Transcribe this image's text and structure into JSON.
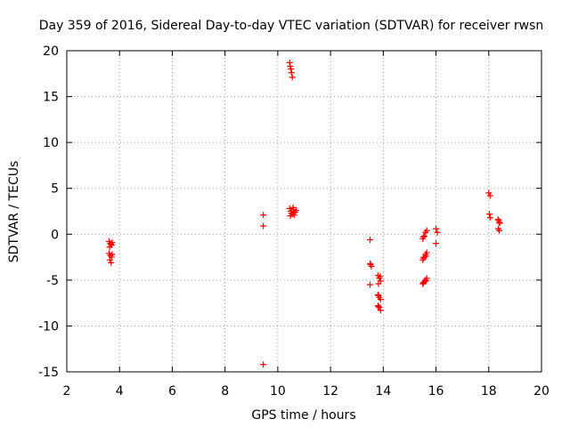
{
  "chart_data": {
    "type": "scatter",
    "title": "Day 359 of 2016, Sidereal Day-to-day VTEC variation (SDTVAR) for receiver rwsn",
    "xlabel": "GPS time / hours",
    "ylabel": "SDTVAR / TECUs",
    "xlim": [
      2,
      20
    ],
    "ylim": [
      -15,
      20
    ],
    "x_ticks": [
      "2",
      "4",
      "6",
      "8",
      "10",
      "12",
      "14",
      "16",
      "18",
      "20"
    ],
    "y_ticks": [
      "-15",
      "-10",
      "-5",
      "0",
      "5",
      "10",
      "15",
      "20"
    ],
    "grid": true,
    "marker": "+",
    "series_color": "#ff0000",
    "points": [
      [
        3.6,
        -0.8
      ],
      [
        3.65,
        -1.0
      ],
      [
        3.7,
        -1.2
      ],
      [
        3.62,
        -1.4
      ],
      [
        3.68,
        -1.1
      ],
      [
        3.72,
        -0.9
      ],
      [
        3.6,
        -2.1
      ],
      [
        3.65,
        -2.3
      ],
      [
        3.7,
        -2.5
      ],
      [
        3.63,
        -2.8
      ],
      [
        3.68,
        -3.1
      ],
      [
        3.72,
        -2.2
      ],
      [
        9.45,
        2.1
      ],
      [
        9.45,
        0.9
      ],
      [
        9.45,
        -14.2
      ],
      [
        10.45,
        18.7
      ],
      [
        10.47,
        18.3
      ],
      [
        10.5,
        18.0
      ],
      [
        10.52,
        17.6
      ],
      [
        10.55,
        17.1
      ],
      [
        10.45,
        2.8
      ],
      [
        10.5,
        2.5
      ],
      [
        10.55,
        2.2
      ],
      [
        10.6,
        2.7
      ],
      [
        10.65,
        2.4
      ],
      [
        10.7,
        2.6
      ],
      [
        10.48,
        2.0
      ],
      [
        10.58,
        2.9
      ],
      [
        10.62,
        2.1
      ],
      [
        10.52,
        2.3
      ],
      [
        13.5,
        -0.6
      ],
      [
        13.5,
        -3.2
      ],
      [
        13.55,
        -3.5
      ],
      [
        13.52,
        -3.3
      ],
      [
        13.5,
        -5.5
      ],
      [
        13.8,
        -4.5
      ],
      [
        13.85,
        -4.8
      ],
      [
        13.9,
        -5.1
      ],
      [
        13.82,
        -5.4
      ],
      [
        13.88,
        -4.6
      ],
      [
        13.8,
        -6.6
      ],
      [
        13.85,
        -6.9
      ],
      [
        13.9,
        -7.1
      ],
      [
        13.82,
        -6.7
      ],
      [
        13.8,
        -7.8
      ],
      [
        13.85,
        -8.0
      ],
      [
        13.9,
        -8.3
      ],
      [
        13.82,
        -7.9
      ],
      [
        15.5,
        -0.5
      ],
      [
        15.55,
        -0.2
      ],
      [
        15.6,
        0.2
      ],
      [
        15.65,
        0.4
      ],
      [
        15.52,
        -0.3
      ],
      [
        15.5,
        -2.8
      ],
      [
        15.55,
        -2.5
      ],
      [
        15.6,
        -2.2
      ],
      [
        15.65,
        -2.0
      ],
      [
        15.52,
        -2.6
      ],
      [
        15.62,
        -2.4
      ],
      [
        15.5,
        -5.4
      ],
      [
        15.55,
        -5.2
      ],
      [
        15.6,
        -5.0
      ],
      [
        15.65,
        -4.8
      ],
      [
        15.52,
        -5.3
      ],
      [
        15.62,
        -5.1
      ],
      [
        16.0,
        0.6
      ],
      [
        16.05,
        0.2
      ],
      [
        16.0,
        -1.0
      ],
      [
        18.0,
        4.5
      ],
      [
        18.05,
        4.2
      ],
      [
        18.02,
        2.2
      ],
      [
        18.05,
        1.8
      ],
      [
        18.35,
        1.6
      ],
      [
        18.4,
        1.3
      ],
      [
        18.38,
        1.5
      ],
      [
        18.42,
        1.2
      ],
      [
        18.36,
        0.6
      ],
      [
        18.4,
        0.4
      ]
    ]
  }
}
